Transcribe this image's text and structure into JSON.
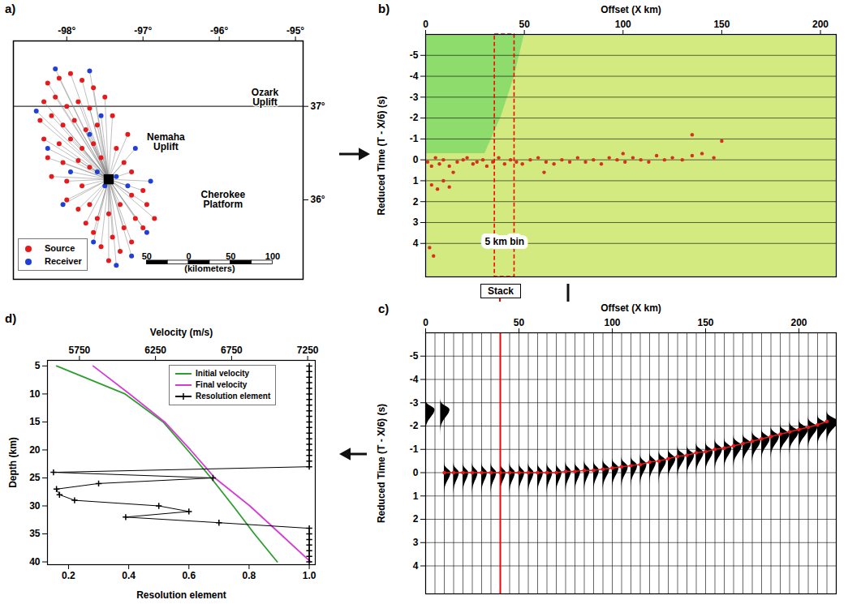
{
  "chart_data": [
    {
      "type": "map",
      "panel": "a)",
      "xlim": [
        -98.7,
        -94.9
      ],
      "ylim": [
        35.15,
        37.7
      ],
      "xticks": [
        {
          "value": -98,
          "label": "-98°"
        },
        {
          "value": -97,
          "label": "-97°"
        },
        {
          "value": -96,
          "label": "-96°"
        },
        {
          "value": -95,
          "label": "-95°"
        }
      ],
      "yticks": [
        {
          "value": 36,
          "label": "36°"
        },
        {
          "value": 37,
          "label": "37°"
        }
      ],
      "legend": "bottom-left",
      "station": {
        "lon": -97.45,
        "lat": 36.22
      },
      "borders": [
        {
          "lon": [
            -98.7,
            -94.9
          ],
          "lat": [
            37,
            37
          ]
        }
      ],
      "series": [
        {
          "name": "Source",
          "color": "#e41a1c",
          "marker": "circle",
          "lon": [
            -98.25,
            -98.1,
            -97.95,
            -97.8,
            -97.65,
            -98.3,
            -98.15,
            -98.0,
            -97.85,
            -97.7,
            -98.35,
            -98.2,
            -98.05,
            -97.9,
            -97.75,
            -97.6,
            -98.3,
            -98.1,
            -97.95,
            -97.8,
            -97.65,
            -98.25,
            -98.05,
            -97.85,
            -97.7,
            -97.55,
            -98.2,
            -98.0,
            -97.8,
            -97.35,
            -97.25,
            -97.15,
            -97.2,
            -97.4,
            -97.5,
            -98.0,
            -97.85,
            -97.7,
            -97.6,
            -97.45,
            -97.3,
            -97.15,
            -97.0,
            -96.95,
            -97.1,
            -97.25,
            -97.4,
            -97.55,
            -97.3,
            -97.15,
            -97.0,
            -96.85,
            -97.65,
            -97.45,
            -97.75
          ],
          "lat": [
            37.25,
            37.3,
            37.35,
            37.28,
            37.2,
            37.05,
            37.1,
            37.0,
            37.05,
            36.98,
            36.85,
            36.9,
            36.8,
            36.85,
            36.75,
            36.8,
            36.65,
            36.6,
            36.65,
            36.55,
            36.6,
            36.45,
            36.4,
            36.42,
            36.35,
            36.45,
            36.25,
            36.2,
            36.15,
            36.55,
            36.4,
            36.3,
            36.7,
            36.9,
            37.1,
            36.0,
            35.9,
            35.95,
            35.8,
            35.85,
            35.95,
            36.05,
            36.1,
            35.95,
            35.8,
            35.7,
            35.6,
            35.5,
            35.45,
            35.55,
            35.7,
            35.8,
            35.65,
            35.35,
            35.75
          ]
        },
        {
          "name": "Receiver",
          "color": "#1f3fd6",
          "marker": "circle",
          "lon": [
            -98.15,
            -97.7,
            -98.4,
            -97.55,
            -98.25,
            -97.95,
            -97.6,
            -97.35,
            -97.5,
            -97.2,
            -96.9,
            -96.95,
            -97.15,
            -97.35,
            -97.65,
            -98.05,
            -97.1,
            -97.7
          ],
          "lat": [
            37.4,
            37.38,
            36.95,
            36.9,
            36.55,
            36.3,
            36.3,
            36.25,
            36.15,
            36.15,
            36.2,
            35.65,
            35.4,
            35.3,
            35.55,
            35.95,
            36.55,
            36.7
          ]
        }
      ],
      "annotations": [
        {
          "text": "Nemaha Uplift",
          "lon": -96.7,
          "lat": 36.62
        },
        {
          "text": "Cherokee Platform",
          "lon": -95.95,
          "lat": 36.0
        },
        {
          "text": "Ozark Uplift",
          "lon": -95.4,
          "lat": 37.1
        }
      ],
      "scale_bar": {
        "ticks": [
          {
            "value": -50,
            "label": "50"
          },
          0,
          50,
          100
        ],
        "label": "(kilometers)"
      }
    },
    {
      "type": "heatmap",
      "panel": "b)",
      "x_label": "Offset (X km)",
      "y_label": "Reduced Time (T - X/6) (s)",
      "xlim": [
        0,
        208
      ],
      "xticks": [
        0,
        50,
        100,
        150,
        200
      ],
      "ylim": [
        -6,
        5.6
      ],
      "yticks": [
        -5,
        -4,
        -3,
        -2,
        -1,
        0,
        1,
        2,
        3,
        4
      ],
      "grid": true,
      "color": "#d7301f",
      "arrivals": {
        "x": [
          1,
          3,
          5,
          7,
          9,
          12,
          14,
          16,
          19,
          21,
          24,
          26,
          29,
          31,
          34,
          37,
          40,
          43,
          46,
          49,
          53,
          57,
          61,
          65,
          69,
          73,
          77,
          81,
          85,
          89,
          93,
          97,
          101,
          105,
          109,
          113,
          117,
          121,
          125,
          130,
          135,
          140,
          146,
          3,
          6,
          9,
          12,
          2,
          4,
          135,
          150,
          100,
          60
        ],
        "t": [
          0.1,
          0.3,
          -0.1,
          0.2,
          0.0,
          0.3,
          0.6,
          0.1,
          0.0,
          -0.1,
          0.2,
          0.1,
          0.0,
          0.3,
          0.1,
          -0.1,
          0.2,
          0.0,
          0.1,
          0.2,
          0.0,
          -0.1,
          0.1,
          0.2,
          0.0,
          0.1,
          -0.1,
          0.1,
          0.0,
          0.2,
          -0.1,
          0.0,
          0.1,
          -0.1,
          0.0,
          0.1,
          -0.2,
          0.0,
          -0.1,
          0.0,
          -0.2,
          -0.3,
          -0.1,
          1.2,
          1.4,
          1.0,
          1.3,
          4.2,
          4.6,
          -1.2,
          -0.9,
          -0.3,
          0.6
        ]
      },
      "no_data": {
        "x": [
          50,
          45,
          38,
          30
        ],
        "t": [
          -6,
          -4,
          -2,
          -0.3
        ]
      },
      "bin": [
        35,
        45
      ],
      "bin_label": {
        "text": "5 km bin",
        "t": 3.9
      }
    },
    {
      "type": "wiggle",
      "panel": "c)",
      "x_label": "Offset (X km)",
      "y_label": "Reduced Time (T - X/6) (s)",
      "xlim": [
        0,
        220
      ],
      "xticks": [
        0,
        50,
        100,
        150,
        200
      ],
      "ylim": [
        -6,
        5.2
      ],
      "yticks": [
        -5,
        -4,
        -3,
        -2,
        -1,
        0,
        1,
        2,
        3,
        4
      ],
      "grid": true,
      "color": "#e41a1c",
      "stack_offset": 40,
      "stack_label": "Stack",
      "offsets": [
        0,
        5,
        10,
        15,
        20,
        25,
        30,
        35,
        40,
        45,
        50,
        55,
        60,
        65,
        70,
        75,
        80,
        85,
        90,
        95,
        100,
        105,
        110,
        115,
        120,
        125,
        130,
        135,
        140,
        145,
        150,
        155,
        160,
        165,
        170,
        175,
        180,
        185,
        190,
        195,
        200,
        205,
        210,
        215
      ],
      "picks": [
        null,
        null,
        0,
        0,
        0,
        0,
        0,
        0,
        0,
        0,
        0,
        0,
        0,
        0,
        0,
        -0.05,
        -0.05,
        -0.1,
        -0.1,
        -0.15,
        -0.2,
        -0.25,
        -0.3,
        -0.35,
        -0.45,
        -0.5,
        -0.6,
        -0.7,
        -0.75,
        -0.85,
        -0.9,
        -1.0,
        -1.05,
        -1.15,
        -1.25,
        -1.35,
        -1.45,
        -1.55,
        -1.65,
        -1.75,
        -1.85,
        -1.95,
        -2.05,
        -2.2
      ],
      "amplitudes": [
        null,
        null,
        3.5,
        3,
        3,
        3,
        3,
        3,
        3,
        3,
        3,
        3,
        3,
        3,
        3,
        3,
        3,
        3,
        3,
        3.5,
        3.5,
        3.5,
        3.5,
        3.5,
        3.5,
        4,
        4,
        4,
        4,
        4,
        4,
        4,
        4,
        4.5,
        4.5,
        4.5,
        4.5,
        4.5,
        5,
        5,
        5,
        5,
        5.5,
        6
      ],
      "early_pulses": {
        "x": [
          0,
          8
        ],
        "t": [
          -2.7,
          -2.7
        ],
        "amplitudes": [
          5,
          5
        ]
      }
    },
    {
      "type": "line",
      "panel": "d)",
      "x_label": "Velocity (m/s)",
      "y_label": "Depth (km)",
      "x2_label": "Resolution element",
      "xlim": [
        5540,
        7300
      ],
      "xticks": [
        5750,
        6250,
        6750,
        7250
      ],
      "x2lim": [
        0.13,
        1.02
      ],
      "x2ticks": [
        0.2,
        0.4,
        0.6,
        0.8,
        {
          "value": 1,
          "label": "1.0"
        }
      ],
      "ylim": [
        4,
        40.5
      ],
      "yticks": [
        5,
        10,
        15,
        20,
        25,
        30,
        35,
        40
      ],
      "legend": "top-right",
      "series": [
        {
          "name": "Initial velocity",
          "color": "#2e9e2e",
          "x": [
            5600,
            6050,
            6300,
            6460,
            6615,
            6760,
            6900,
            7050
          ],
          "y": [
            5,
            10,
            15,
            20,
            25,
            30,
            35,
            40
          ]
        },
        {
          "name": "Final velocity",
          "color": "#d63bd6",
          "x": [
            5840,
            6080,
            6310,
            6480,
            6640,
            6870,
            7070,
            7270
          ],
          "y": [
            5,
            10,
            15,
            20,
            25,
            30,
            35,
            40
          ]
        },
        {
          "name": "Resolution element",
          "color": "#000000",
          "axis": "x2",
          "marker": "plus",
          "x": [
            1,
            1,
            1,
            1,
            1,
            1,
            1,
            1,
            1,
            1,
            1,
            1,
            1,
            1,
            1,
            1,
            1,
            1,
            1,
            0.15,
            0.68,
            0.3,
            0.16,
            0.17,
            0.22,
            0.5,
            0.6,
            0.39,
            0.7,
            1,
            1,
            1,
            1,
            1,
            1,
            1
          ],
          "y": [
            5,
            6,
            7,
            8,
            9,
            10,
            11,
            12,
            13,
            14,
            15,
            16,
            17,
            18,
            19,
            20,
            21,
            22,
            23,
            24,
            25,
            26,
            27,
            28,
            29,
            30,
            31,
            32,
            33,
            34,
            35,
            36,
            37,
            38,
            39,
            40
          ]
        }
      ]
    }
  ]
}
